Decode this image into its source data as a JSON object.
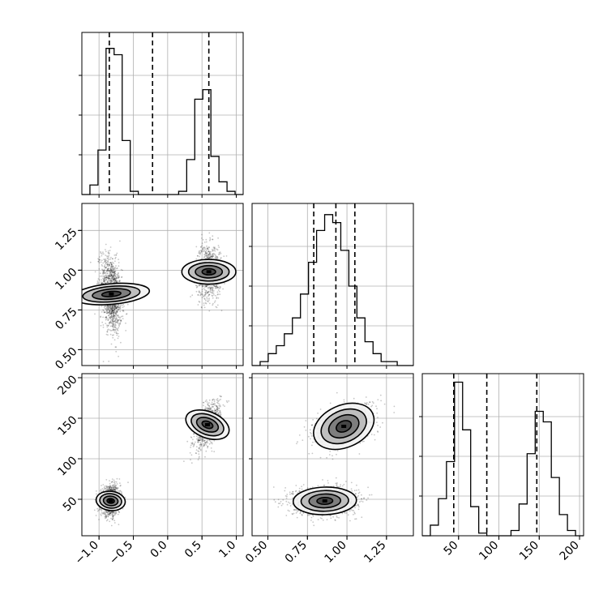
{
  "chart_data": {
    "type": "corner",
    "grid": true,
    "parameters": [
      {
        "range": [
          -1.25,
          1.1
        ],
        "ticks": [
          -1.0,
          -0.5,
          0.0,
          0.5,
          1.0
        ],
        "tick_labels": [
          "−1.0",
          "−0.5",
          "0.0",
          "0.5",
          "1.0"
        ]
      },
      {
        "range": [
          0.4,
          1.42
        ],
        "ticks": [
          0.5,
          0.75,
          1.0,
          1.25
        ],
        "tick_labels": [
          "0.50",
          "0.75",
          "1.00",
          "1.25"
        ]
      },
      {
        "range": [
          5,
          205
        ],
        "ticks": [
          50,
          100,
          150,
          200
        ],
        "tick_labels": [
          "50",
          "100",
          "150",
          "200"
        ]
      }
    ],
    "histograms": [
      {
        "edges_range": [
          -1.25,
          1.1
        ],
        "bins": 20,
        "counts": [
          0,
          3,
          14,
          46,
          44,
          17,
          1,
          0,
          0,
          0,
          0,
          0,
          1,
          11,
          30,
          33,
          12,
          4,
          1,
          0
        ],
        "ymax": 50,
        "quantiles": [
          -0.85,
          -0.22,
          0.6
        ]
      },
      {
        "edges_range": [
          0.4,
          1.42
        ],
        "bins": 20,
        "counts": [
          0,
          1,
          3,
          5,
          8,
          12,
          18,
          26,
          34,
          38,
          36,
          29,
          20,
          12,
          6,
          3,
          1,
          1,
          0,
          0
        ],
        "ymax": 40,
        "quantiles": [
          0.79,
          0.93,
          1.05
        ]
      },
      {
        "edges_range": [
          5,
          205
        ],
        "bins": 20,
        "counts": [
          0,
          4,
          14,
          28,
          58,
          40,
          11,
          1,
          0,
          0,
          0,
          2,
          12,
          31,
          47,
          43,
          22,
          8,
          2,
          0
        ],
        "ymax": 60,
        "quantiles": [
          44,
          85,
          147
        ]
      }
    ],
    "scatter_clusters": [
      {
        "pair": [
          0,
          1
        ],
        "clusters": [
          {
            "x": -0.82,
            "y": 0.85,
            "sx": 0.075,
            "sy": 0.12,
            "rho": -0.3,
            "n": 1300
          },
          {
            "x": 0.6,
            "y": 0.99,
            "sx": 0.09,
            "sy": 0.085,
            "rho": 0.0,
            "n": 900
          }
        ]
      },
      {
        "pair": [
          0,
          2
        ],
        "clusters": [
          {
            "x": -0.83,
            "y": 48,
            "sx": 0.07,
            "sy": 9,
            "rho": 0.1,
            "n": 1100
          },
          {
            "x": 0.58,
            "y": 142,
            "sx": 0.095,
            "sy": 14,
            "rho": 0.55,
            "n": 900
          }
        ]
      },
      {
        "pair": [
          1,
          2
        ],
        "clusters": [
          {
            "x": 0.86,
            "y": 48,
            "sx": 0.1,
            "sy": 8.5,
            "rho": 0.05,
            "n": 1200
          },
          {
            "x": 0.98,
            "y": 140,
            "sx": 0.1,
            "sy": 13,
            "rho": 0.45,
            "n": 900
          }
        ]
      }
    ]
  }
}
